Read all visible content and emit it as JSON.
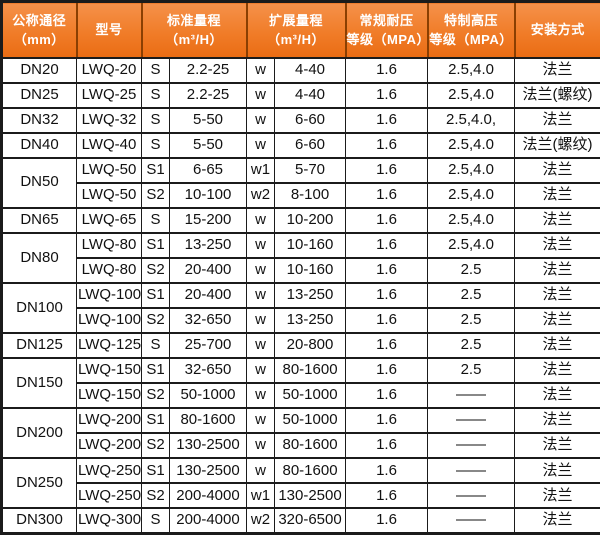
{
  "table": {
    "description": "LWQ series flow meter specification table",
    "headers": [
      {
        "line1": "公称通径",
        "line2": "（mm）"
      },
      {
        "line1": "型号"
      },
      {
        "line1": "标准量程",
        "line2": "（m³/H）"
      },
      {
        "line1": "扩展量程",
        "line2": "（m³/H）"
      },
      {
        "line1": "常规耐压",
        "line2": "等级（MPA）"
      },
      {
        "line1": "特制高压",
        "line2": "等级（MPA）"
      },
      {
        "line1": "安装方式"
      }
    ],
    "rows": [
      {
        "dn": "DN20",
        "dn_rowspan": 1,
        "model": "LWQ-20",
        "s_code": "S",
        "s_range": "2.2-25",
        "w_code": "w",
        "w_range": "4-40",
        "pressure": "1.6",
        "high_pressure": "2.5,4.0",
        "install": "法兰"
      },
      {
        "dn": "DN25",
        "dn_rowspan": 1,
        "model": "LWQ-25",
        "s_code": "S",
        "s_range": "2.2-25",
        "w_code": "w",
        "w_range": "4-40",
        "pressure": "1.6",
        "high_pressure": "2.5,4.0",
        "install": "法兰(螺纹)"
      },
      {
        "dn": "DN32",
        "dn_rowspan": 1,
        "model": "LWQ-32",
        "s_code": "S",
        "s_range": "5-50",
        "w_code": "w",
        "w_range": "6-60",
        "pressure": "1.6",
        "high_pressure": "2.5,4.0,",
        "install": "法兰"
      },
      {
        "dn": "DN40",
        "dn_rowspan": 1,
        "model": "LWQ-40",
        "s_code": "S",
        "s_range": "5-50",
        "w_code": "w",
        "w_range": "6-60",
        "pressure": "1.6",
        "high_pressure": "2.5,4.0",
        "install": "法兰(螺纹)"
      },
      {
        "dn": "DN50",
        "dn_rowspan": 2,
        "model": "LWQ-50",
        "s_code": "S1",
        "s_range": "6-65",
        "w_code": "w1",
        "w_range": "5-70",
        "pressure": "1.6",
        "high_pressure": "2.5,4.0",
        "install": "法兰"
      },
      {
        "dn": null,
        "model": "LWQ-50",
        "s_code": "S2",
        "s_range": "10-100",
        "w_code": "w2",
        "w_range": "8-100",
        "pressure": "1.6",
        "high_pressure": "2.5,4.0",
        "install": "法兰"
      },
      {
        "dn": "DN65",
        "dn_rowspan": 1,
        "model": "LWQ-65",
        "s_code": "S",
        "s_range": "15-200",
        "w_code": "w",
        "w_range": "10-200",
        "pressure": "1.6",
        "high_pressure": "2.5,4.0",
        "install": "法兰"
      },
      {
        "dn": "DN80",
        "dn_rowspan": 2,
        "model": "LWQ-80",
        "s_code": "S1",
        "s_range": "13-250",
        "w_code": "w",
        "w_range": "10-160",
        "pressure": "1.6",
        "high_pressure": "2.5,4.0",
        "install": "法兰"
      },
      {
        "dn": null,
        "model": "LWQ-80",
        "s_code": "S2",
        "s_range": "20-400",
        "w_code": "w",
        "w_range": "10-160",
        "pressure": "1.6",
        "high_pressure": "2.5",
        "install": "法兰"
      },
      {
        "dn": "DN100",
        "dn_rowspan": 2,
        "model": "LWQ-100",
        "s_code": "S1",
        "s_range": "20-400",
        "w_code": "w",
        "w_range": "13-250",
        "pressure": "1.6",
        "high_pressure": "2.5",
        "install": "法兰"
      },
      {
        "dn": null,
        "model": "LWQ-100",
        "s_code": "S2",
        "s_range": "32-650",
        "w_code": "w",
        "w_range": "13-250",
        "pressure": "1.6",
        "high_pressure": "2.5",
        "install": "法兰"
      },
      {
        "dn": "DN125",
        "dn_rowspan": 1,
        "model": "LWQ-125",
        "s_code": "S",
        "s_range": "25-700",
        "w_code": "w",
        "w_range": "20-800",
        "pressure": "1.6",
        "high_pressure": "2.5",
        "install": "法兰"
      },
      {
        "dn": "DN150",
        "dn_rowspan": 2,
        "model": "LWQ-150",
        "s_code": "S1",
        "s_range": "32-650",
        "w_code": "w",
        "w_range": "80-1600",
        "pressure": "1.6",
        "high_pressure": "2.5",
        "install": "法兰"
      },
      {
        "dn": null,
        "model": "LWQ-150",
        "s_code": "S2",
        "s_range": "50-1000",
        "w_code": "w",
        "w_range": "50-1000",
        "pressure": "1.6",
        "high_pressure": "——",
        "install": "法兰"
      },
      {
        "dn": "DN200",
        "dn_rowspan": 2,
        "model": "LWQ-200",
        "s_code": "S1",
        "s_range": "80-1600",
        "w_code": "w",
        "w_range": "50-1000",
        "pressure": "1.6",
        "high_pressure": "——",
        "install": "法兰"
      },
      {
        "dn": null,
        "model": "LWQ-200",
        "s_code": "S2",
        "s_range": "130-2500",
        "w_code": "w",
        "w_range": "80-1600",
        "pressure": "1.6",
        "high_pressure": "——",
        "install": "法兰"
      },
      {
        "dn": "DN250",
        "dn_rowspan": 2,
        "model": "LWQ-250",
        "s_code": "S1",
        "s_range": "130-2500",
        "w_code": "w",
        "w_range": "80-1600",
        "pressure": "1.6",
        "high_pressure": "——",
        "install": "法兰"
      },
      {
        "dn": null,
        "model": "LWQ-250",
        "s_code": "S2",
        "s_range": "200-4000",
        "w_code": "w1",
        "w_range": "130-2500",
        "pressure": "1.6",
        "high_pressure": "——",
        "install": "法兰"
      },
      {
        "dn": "DN300",
        "dn_rowspan": 1,
        "model": "LWQ-300",
        "s_code": "S",
        "s_range": "200-4000",
        "w_code": "w2",
        "w_range": "320-6500",
        "pressure": "1.6",
        "high_pressure": "——",
        "install": "法兰"
      }
    ]
  },
  "colors": {
    "header_orange_top": "#f5914a",
    "header_orange_bottom": "#ea6c13",
    "header_divider": "#8a3f02",
    "header_text": "#ffffff",
    "border_dark": "#1b1b1b",
    "cell_text": "#111111"
  }
}
